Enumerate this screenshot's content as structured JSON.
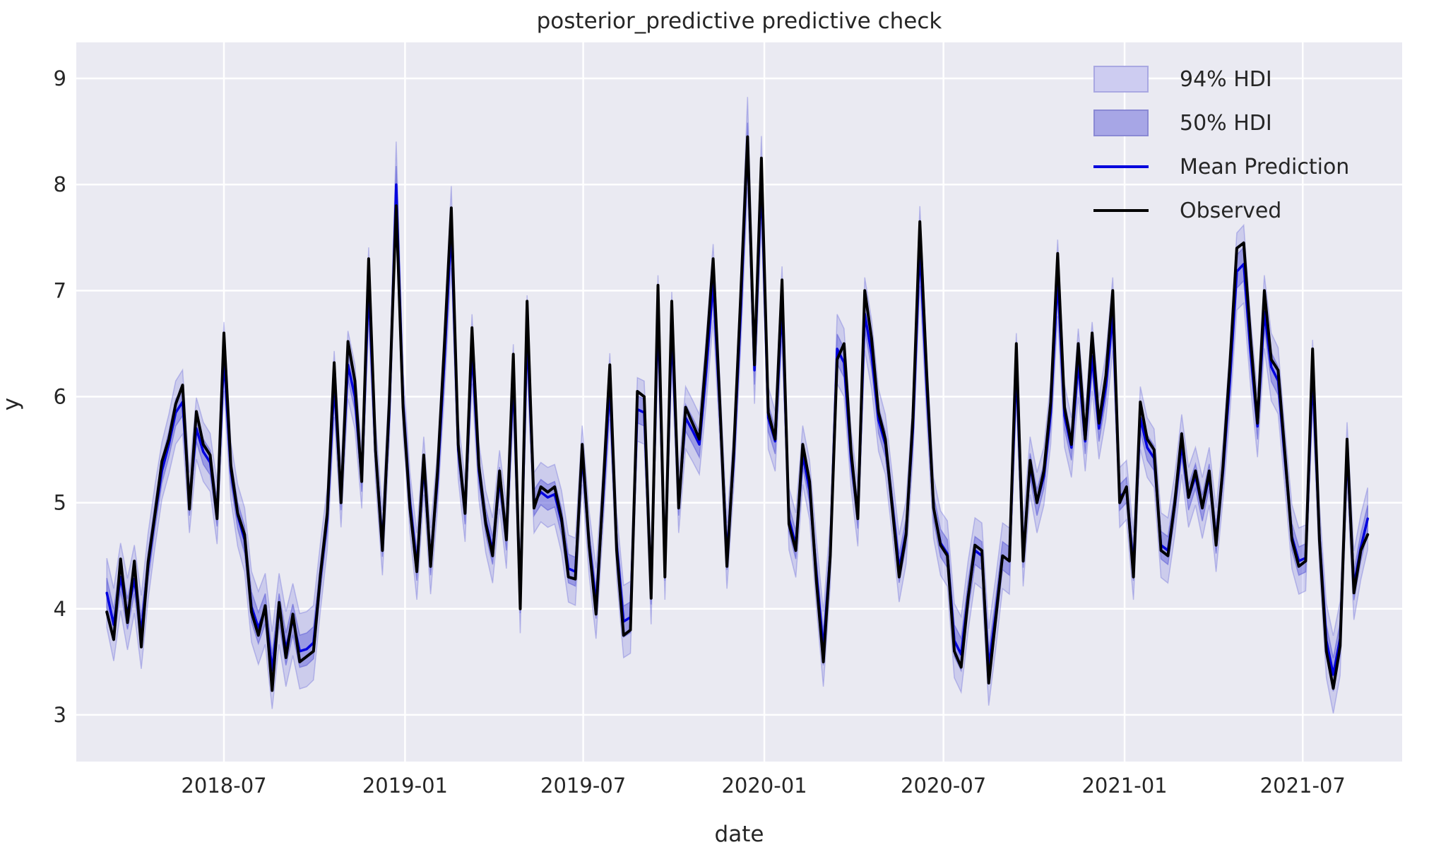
{
  "figure": {
    "title": "posterior_predictive predictive check",
    "xlabel": "date",
    "ylabel": "y"
  },
  "legend": {
    "entries": [
      {
        "label": "94% HDI",
        "kind": "patch",
        "fill": "#cdccf1",
        "border": "#a9a8e2"
      },
      {
        "label": "50% HDI",
        "kind": "patch",
        "fill": "#a7a6e6",
        "border": "#8a89d4"
      },
      {
        "label": "Mean Prediction",
        "kind": "line",
        "color": "#0000dd"
      },
      {
        "label": "Observed",
        "kind": "line",
        "color": "#000000"
      }
    ]
  },
  "chart_data": {
    "type": "line",
    "title": "posterior_predictive predictive check",
    "xlabel": "date",
    "ylabel": "y",
    "plot_background": "#eaeaf2",
    "grid": true,
    "grid_color": "#ffffff",
    "legend_position": "upper right",
    "x_start": "2018-03-04",
    "x_step_days": 7,
    "xlim_days": [
      -31,
      1316
    ],
    "ylim": [
      2.56,
      9.34
    ],
    "yticks": [
      3,
      4,
      5,
      6,
      7,
      8,
      9
    ],
    "xticks": [
      {
        "label": "2018-07",
        "day": 119
      },
      {
        "label": "2019-01",
        "day": 303
      },
      {
        "label": "2019-07",
        "day": 484
      },
      {
        "label": "2020-01",
        "day": 668
      },
      {
        "label": "2020-07",
        "day": 850
      },
      {
        "label": "2021-01",
        "day": 1034
      },
      {
        "label": "2021-07",
        "day": 1215
      }
    ],
    "series": [
      {
        "name": "Mean Prediction",
        "color": "#0000dd",
        "width": 3.5,
        "values": [
          4.15,
          3.85,
          4.3,
          3.95,
          4.28,
          3.78,
          4.4,
          4.88,
          5.3,
          5.55,
          5.85,
          5.95,
          5.0,
          5.7,
          5.48,
          5.38,
          4.9,
          6.38,
          5.3,
          4.88,
          4.65,
          4.02,
          3.82,
          4.0,
          3.42,
          4.0,
          3.62,
          3.9,
          3.6,
          3.62,
          3.68,
          4.3,
          4.85,
          6.12,
          5.05,
          6.3,
          6.0,
          5.22,
          7.05,
          5.48,
          4.62,
          5.85,
          8.0,
          5.95,
          5.0,
          4.4,
          5.35,
          4.45,
          5.22,
          6.35,
          7.6,
          5.5,
          4.92,
          6.45,
          5.3,
          4.82,
          4.55,
          5.22,
          4.68,
          6.18,
          4.1,
          6.62,
          5.0,
          5.1,
          5.05,
          5.08,
          4.82,
          4.38,
          4.35,
          5.45,
          4.62,
          4.05,
          5.02,
          6.1,
          4.6,
          3.88,
          3.92,
          5.88,
          5.85,
          4.18,
          6.8,
          4.4,
          6.65,
          5.0,
          5.8,
          5.68,
          5.55,
          6.25,
          7.08,
          5.85,
          4.5,
          5.42,
          6.8,
          8.4,
          6.25,
          8.05,
          5.8,
          5.58,
          6.88,
          4.85,
          4.6,
          5.45,
          5.12,
          4.32,
          3.62,
          4.52,
          6.45,
          6.32,
          5.42,
          4.88,
          6.78,
          6.4,
          5.78,
          5.55,
          4.98,
          4.38,
          4.72,
          5.7,
          7.42,
          6.08,
          4.95,
          4.62,
          4.52,
          3.7,
          3.57,
          4.12,
          4.55,
          4.5,
          3.45,
          3.95,
          4.5,
          4.45,
          6.28,
          4.52,
          5.35,
          5.0,
          5.25,
          5.85,
          7.12,
          5.82,
          5.52,
          6.32,
          5.58,
          6.38,
          5.7,
          6.1,
          6.78,
          5.05,
          5.12,
          4.4,
          5.8,
          5.52,
          5.42,
          4.6,
          4.55,
          4.98,
          5.55,
          5.05,
          5.25,
          4.95,
          5.25,
          4.65,
          5.3,
          6.15,
          7.18,
          7.25,
          6.42,
          5.72,
          6.8,
          6.28,
          6.15,
          5.4,
          4.68,
          4.45,
          4.48,
          6.22,
          4.68,
          3.7,
          3.38,
          3.72,
          5.48,
          4.22,
          4.58,
          4.85
        ]
      },
      {
        "name": "Observed",
        "color": "#000000",
        "width": 4,
        "values": [
          3.97,
          3.71,
          4.47,
          3.87,
          4.45,
          3.64,
          4.44,
          4.9,
          5.39,
          5.6,
          5.93,
          6.11,
          4.94,
          5.86,
          5.55,
          5.45,
          4.85,
          6.6,
          5.35,
          4.9,
          4.7,
          3.97,
          3.75,
          4.03,
          3.23,
          4.06,
          3.54,
          3.95,
          3.5,
          3.55,
          3.6,
          4.32,
          4.9,
          6.32,
          5.0,
          6.52,
          6.15,
          5.2,
          7.3,
          5.5,
          4.55,
          5.95,
          7.8,
          5.9,
          4.95,
          4.35,
          5.45,
          4.4,
          5.3,
          6.5,
          7.78,
          5.55,
          4.9,
          6.65,
          5.35,
          4.8,
          4.5,
          5.3,
          4.65,
          6.4,
          4.0,
          6.9,
          4.95,
          5.15,
          5.1,
          5.15,
          4.85,
          4.3,
          4.28,
          5.55,
          4.6,
          3.95,
          5.1,
          6.3,
          4.55,
          3.75,
          3.8,
          6.05,
          6.0,
          4.1,
          7.05,
          4.3,
          6.9,
          4.95,
          5.9,
          5.75,
          5.6,
          6.4,
          7.3,
          5.9,
          4.4,
          5.5,
          6.95,
          8.45,
          6.3,
          8.25,
          5.85,
          5.6,
          7.1,
          4.8,
          4.55,
          5.55,
          5.2,
          4.25,
          3.5,
          4.5,
          6.35,
          6.5,
          5.5,
          4.85,
          7.0,
          6.55,
          5.85,
          5.6,
          4.95,
          4.3,
          4.7,
          5.8,
          7.65,
          6.2,
          4.95,
          4.6,
          4.5,
          3.6,
          3.45,
          4.1,
          4.6,
          4.55,
          3.3,
          3.9,
          4.5,
          4.45,
          6.5,
          4.45,
          5.4,
          5.0,
          5.3,
          5.95,
          7.35,
          5.9,
          5.55,
          6.5,
          5.6,
          6.6,
          5.75,
          6.2,
          7.0,
          5.0,
          5.15,
          4.3,
          5.95,
          5.6,
          5.5,
          4.55,
          4.5,
          5.0,
          5.65,
          5.05,
          5.3,
          4.95,
          5.3,
          4.6,
          5.35,
          6.3,
          7.4,
          7.45,
          6.55,
          5.75,
          7.0,
          6.35,
          6.25,
          5.45,
          4.65,
          4.4,
          4.45,
          6.45,
          4.65,
          3.6,
          3.25,
          3.65,
          5.6,
          4.15,
          4.55,
          4.7
        ]
      }
    ],
    "bands": [
      {
        "name": "94% HDI",
        "around": "Mean Prediction",
        "halfwidth_base": 0.27,
        "halfwidth_slope": 0.05,
        "halfwidth_center": 5.3,
        "fill": "rgba(86,86,214,0.20)",
        "edge": "rgba(86,86,214,0.32)"
      },
      {
        "name": "50% HDI",
        "around": "Mean Prediction",
        "halfwidth_base": 0.115,
        "halfwidth_slope": 0.022,
        "halfwidth_center": 5.3,
        "fill": "rgba(86,86,214,0.42)",
        "edge": "rgba(86,86,214,0.5)"
      }
    ]
  }
}
